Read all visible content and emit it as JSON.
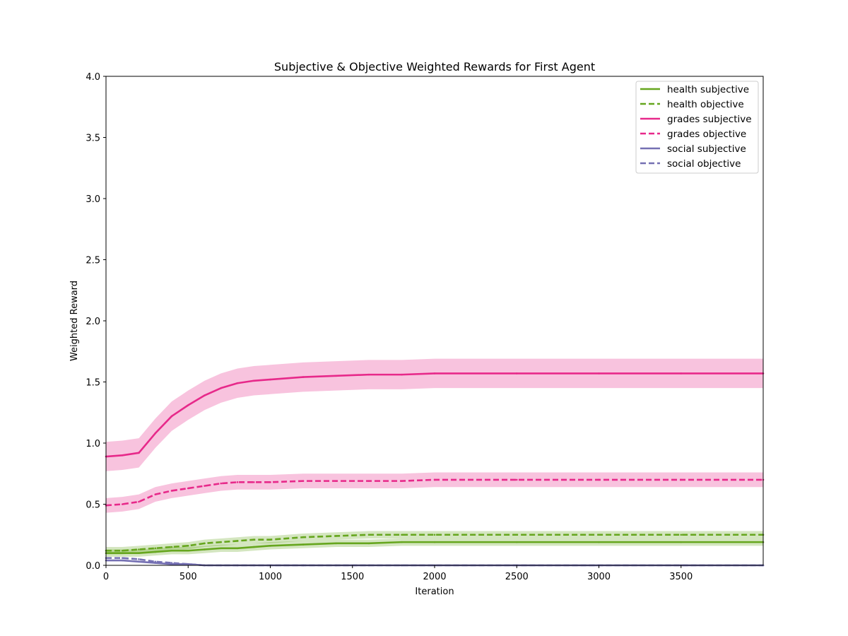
{
  "chart_data": {
    "type": "line",
    "title": "Subjective & Objective Weighted Rewards for First Agent",
    "xlabel": "Iteration",
    "ylabel": "Weighted Reward",
    "xlim": [
      0,
      4000
    ],
    "ylim": [
      0,
      4.0
    ],
    "xticks": [
      0,
      500,
      1000,
      1500,
      2000,
      2500,
      3000,
      3500
    ],
    "xtick_labels": [
      "0",
      "500",
      "1000",
      "1500",
      "2000",
      "2500",
      "3000",
      "3500"
    ],
    "yticks": [
      0,
      0.5,
      1.0,
      1.5,
      2.0,
      2.5,
      3.0,
      3.5,
      4.0
    ],
    "ytick_labels": [
      "0.0",
      "0.5",
      "1.0",
      "1.5",
      "2.0",
      "2.5",
      "3.0",
      "3.5",
      "4.0"
    ],
    "grid": false,
    "legend_position": "top-right",
    "x": [
      0,
      100,
      200,
      300,
      400,
      500,
      600,
      700,
      800,
      900,
      1000,
      1200,
      1400,
      1600,
      1800,
      2000,
      2500,
      3000,
      3500,
      4000
    ],
    "series": [
      {
        "name": "health subjective",
        "color": "#66a61e",
        "dash": "solid",
        "band": 0.03,
        "values": [
          0.1,
          0.1,
          0.1,
          0.11,
          0.12,
          0.12,
          0.13,
          0.14,
          0.14,
          0.15,
          0.16,
          0.17,
          0.18,
          0.18,
          0.19,
          0.19,
          0.19,
          0.19,
          0.19,
          0.19
        ]
      },
      {
        "name": "health objective",
        "color": "#66a61e",
        "dash": "dashed",
        "band": 0.03,
        "values": [
          0.12,
          0.12,
          0.13,
          0.14,
          0.15,
          0.16,
          0.18,
          0.19,
          0.2,
          0.21,
          0.21,
          0.23,
          0.24,
          0.25,
          0.25,
          0.25,
          0.25,
          0.25,
          0.25,
          0.25
        ]
      },
      {
        "name": "grades subjective",
        "color": "#e7298a",
        "dash": "solid",
        "band": 0.12,
        "values": [
          0.89,
          0.9,
          0.92,
          1.08,
          1.22,
          1.31,
          1.39,
          1.45,
          1.49,
          1.51,
          1.52,
          1.54,
          1.55,
          1.56,
          1.56,
          1.57,
          1.57,
          1.57,
          1.57,
          1.57
        ]
      },
      {
        "name": "grades objective",
        "color": "#e7298a",
        "dash": "dashed",
        "band": 0.06,
        "values": [
          0.49,
          0.5,
          0.52,
          0.58,
          0.61,
          0.63,
          0.65,
          0.67,
          0.68,
          0.68,
          0.68,
          0.69,
          0.69,
          0.69,
          0.69,
          0.7,
          0.7,
          0.7,
          0.7,
          0.7
        ]
      },
      {
        "name": "social subjective",
        "color": "#7570b3",
        "dash": "solid",
        "band": 0.0,
        "values": [
          0.04,
          0.04,
          0.03,
          0.02,
          0.01,
          0.01,
          0.0,
          0.0,
          0.0,
          0.0,
          0.0,
          0.0,
          0.0,
          0.0,
          0.0,
          0.0,
          0.0,
          0.0,
          0.0,
          0.0
        ]
      },
      {
        "name": "social objective",
        "color": "#7570b3",
        "dash": "dashed",
        "band": 0.0,
        "values": [
          0.06,
          0.06,
          0.05,
          0.03,
          0.02,
          0.01,
          0.0,
          0.0,
          0.0,
          0.0,
          0.0,
          0.0,
          0.0,
          0.0,
          0.0,
          0.0,
          0.0,
          0.0,
          0.0,
          0.0
        ]
      }
    ]
  }
}
